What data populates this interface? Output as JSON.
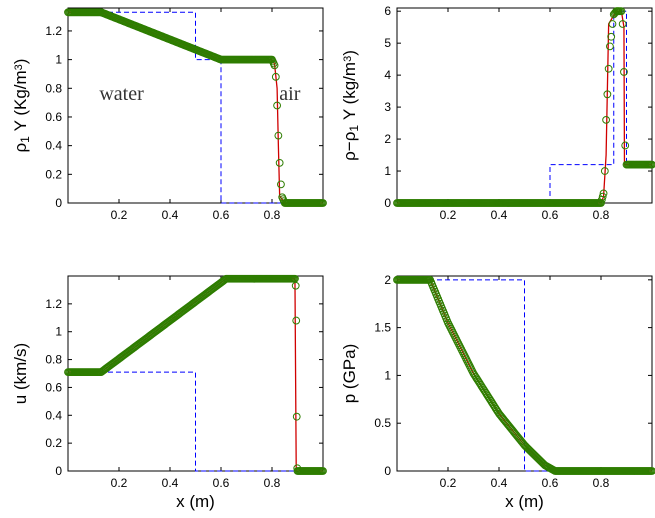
{
  "chart_data": [
    {
      "type": "line",
      "ylabel_main": "ρ",
      "ylabel_sub": "1",
      "ylabel_rest": " Y (Kg/m",
      "ylabel_sup": "3",
      "ylabel_end": ")",
      "xlabel": "",
      "xlim": [
        0,
        1
      ],
      "ylim": [
        0,
        1.36
      ],
      "xticks": [
        "0.2",
        "0.4",
        "0.6",
        "0.8"
      ],
      "xtick_values": [
        0.2,
        0.4,
        0.6,
        0.8
      ],
      "yticks": [
        "0",
        "0.2",
        "0.4",
        "0.6",
        "0.8",
        "1",
        "1.2"
      ],
      "ytick_values": [
        0,
        0.2,
        0.4,
        0.6,
        0.8,
        1,
        1.2
      ],
      "annotations": [
        {
          "text": "water",
          "x": 0.21,
          "y": 0.72
        },
        {
          "text": "air",
          "x": 0.87,
          "y": 0.72
        }
      ],
      "series": [
        {
          "style": "dashed-blue",
          "x": [
            0,
            0.5,
            0.5,
            0.6,
            0.6,
            0.85,
            0.85,
            1
          ],
          "y": [
            1.33,
            1.33,
            1.0,
            1.0,
            0,
            0,
            0,
            0
          ]
        },
        {
          "style": "solid-red",
          "x": [
            0,
            0.13,
            0.6,
            0.8,
            0.81,
            0.82,
            0.825,
            0.83,
            0.85,
            1
          ],
          "y": [
            1.33,
            1.33,
            1.0,
            1.0,
            0.97,
            0.8,
            0.4,
            0.05,
            0,
            0
          ]
        },
        {
          "style": "circles-green",
          "x": [
            0,
            0.13,
            0.6,
            0.8,
            0.81,
            0.815,
            0.82,
            0.825,
            0.83,
            0.835,
            0.84,
            0.85,
            1
          ],
          "y": [
            1.33,
            1.33,
            1.0,
            1.0,
            0.96,
            0.88,
            0.68,
            0.47,
            0.28,
            0.13,
            0.04,
            0.0,
            0
          ]
        }
      ]
    },
    {
      "type": "line",
      "ylabel_main": "ρ−ρ",
      "ylabel_sub": "1",
      "ylabel_rest": " Y (kg/m",
      "ylabel_sup": "3",
      "ylabel_end": ")",
      "xlabel": "",
      "xlim": [
        0,
        1
      ],
      "ylim": [
        0,
        6.1
      ],
      "xticks": [
        "0.2",
        "0.4",
        "0.6",
        "0.8"
      ],
      "xtick_values": [
        0.2,
        0.4,
        0.6,
        0.8
      ],
      "yticks": [
        "0",
        "1",
        "2",
        "3",
        "4",
        "5",
        "6"
      ],
      "ytick_values": [
        0,
        1,
        2,
        3,
        4,
        5,
        6
      ],
      "series": [
        {
          "style": "dashed-blue",
          "x": [
            0,
            0.6,
            0.6,
            0.85,
            0.85,
            0.9,
            0.9,
            1
          ],
          "y": [
            0,
            0,
            1.2,
            1.2,
            6.0,
            6.0,
            1.2,
            1.2
          ]
        },
        {
          "style": "solid-red",
          "x": [
            0,
            0.8,
            0.81,
            0.82,
            0.83,
            0.86,
            0.88,
            0.89,
            0.892,
            1
          ],
          "y": [
            0,
            0,
            0.2,
            1.5,
            5.6,
            6.0,
            6.0,
            5.5,
            1.2,
            1.2
          ]
        },
        {
          "style": "circles-green",
          "x": [
            0,
            0.8,
            0.81,
            0.815,
            0.82,
            0.825,
            0.83,
            0.835,
            0.84,
            0.845,
            0.85,
            0.86,
            0.87,
            0.875,
            0.88,
            0.885,
            0.89,
            0.895,
            0.9,
            1
          ],
          "y": [
            0,
            0,
            0.3,
            1.0,
            2.6,
            3.4,
            4.2,
            4.9,
            5.2,
            5.6,
            5.9,
            6.0,
            6.0,
            6.0,
            6.0,
            5.6,
            4.1,
            1.8,
            1.2,
            1.2
          ]
        }
      ]
    },
    {
      "type": "line",
      "ylabel_main": "u (km/s)",
      "ylabel_sub": "",
      "ylabel_rest": "",
      "ylabel_sup": "",
      "ylabel_end": "",
      "xlabel": "x (m)",
      "xlim": [
        0,
        1
      ],
      "ylim": [
        0,
        1.4
      ],
      "xticks": [
        "0.2",
        "0.4",
        "0.6",
        "0.8"
      ],
      "xtick_values": [
        0.2,
        0.4,
        0.6,
        0.8
      ],
      "yticks": [
        "0",
        "0.2",
        "0.4",
        "0.6",
        "0.8",
        "1",
        "1.2"
      ],
      "ytick_values": [
        0,
        0.2,
        0.4,
        0.6,
        0.8,
        1,
        1.2
      ],
      "series": [
        {
          "style": "dashed-blue",
          "x": [
            0,
            0.5,
            0.5,
            1
          ],
          "y": [
            0.71,
            0.71,
            0,
            0
          ]
        },
        {
          "style": "solid-red",
          "x": [
            0,
            0.13,
            0.62,
            0.89,
            0.895,
            1
          ],
          "y": [
            0.71,
            0.71,
            1.38,
            1.38,
            0,
            0
          ]
        },
        {
          "style": "circles-green",
          "x": [
            0,
            0.13,
            0.62,
            0.89,
            0.893,
            0.895,
            0.897,
            0.899,
            0.9,
            1
          ],
          "y": [
            0.71,
            0.71,
            1.38,
            1.38,
            1.33,
            1.08,
            0.39,
            0.02,
            0,
            0
          ]
        }
      ]
    },
    {
      "type": "line",
      "ylabel_main": "p (GPa)",
      "ylabel_sub": "",
      "ylabel_rest": "",
      "ylabel_sup": "",
      "ylabel_end": "",
      "xlabel": "x (m)",
      "xlim": [
        0,
        1
      ],
      "ylim": [
        0,
        2.04
      ],
      "xticks": [
        "0.2",
        "0.4",
        "0.6",
        "0.8"
      ],
      "xtick_values": [
        0.2,
        0.4,
        0.6,
        0.8
      ],
      "yticks": [
        "0",
        "0.5",
        "1",
        "1.5",
        "2"
      ],
      "ytick_values": [
        0,
        0.5,
        1,
        1.5,
        2
      ],
      "series": [
        {
          "style": "dashed-blue",
          "x": [
            0,
            0.5,
            0.5,
            1
          ],
          "y": [
            2.0,
            2.0,
            0,
            0
          ]
        },
        {
          "style": "solid-red",
          "x": [
            0,
            0.13,
            0.2,
            0.3,
            0.4,
            0.5,
            0.58,
            0.62,
            0.7,
            1
          ],
          "y": [
            2.0,
            2.0,
            1.55,
            1.02,
            0.6,
            0.27,
            0.06,
            0.0,
            0.0,
            0.0
          ]
        },
        {
          "style": "circles-green",
          "x": [
            0,
            0.13,
            0.2,
            0.3,
            0.4,
            0.5,
            0.58,
            0.62,
            0.7,
            1
          ],
          "y": [
            2.0,
            2.0,
            1.55,
            1.02,
            0.6,
            0.27,
            0.06,
            0.0,
            0.0,
            0.0
          ]
        }
      ]
    }
  ],
  "colors": {
    "dashed": "#0000ff",
    "solid": "#d00000",
    "circles": "#2e7d00"
  }
}
